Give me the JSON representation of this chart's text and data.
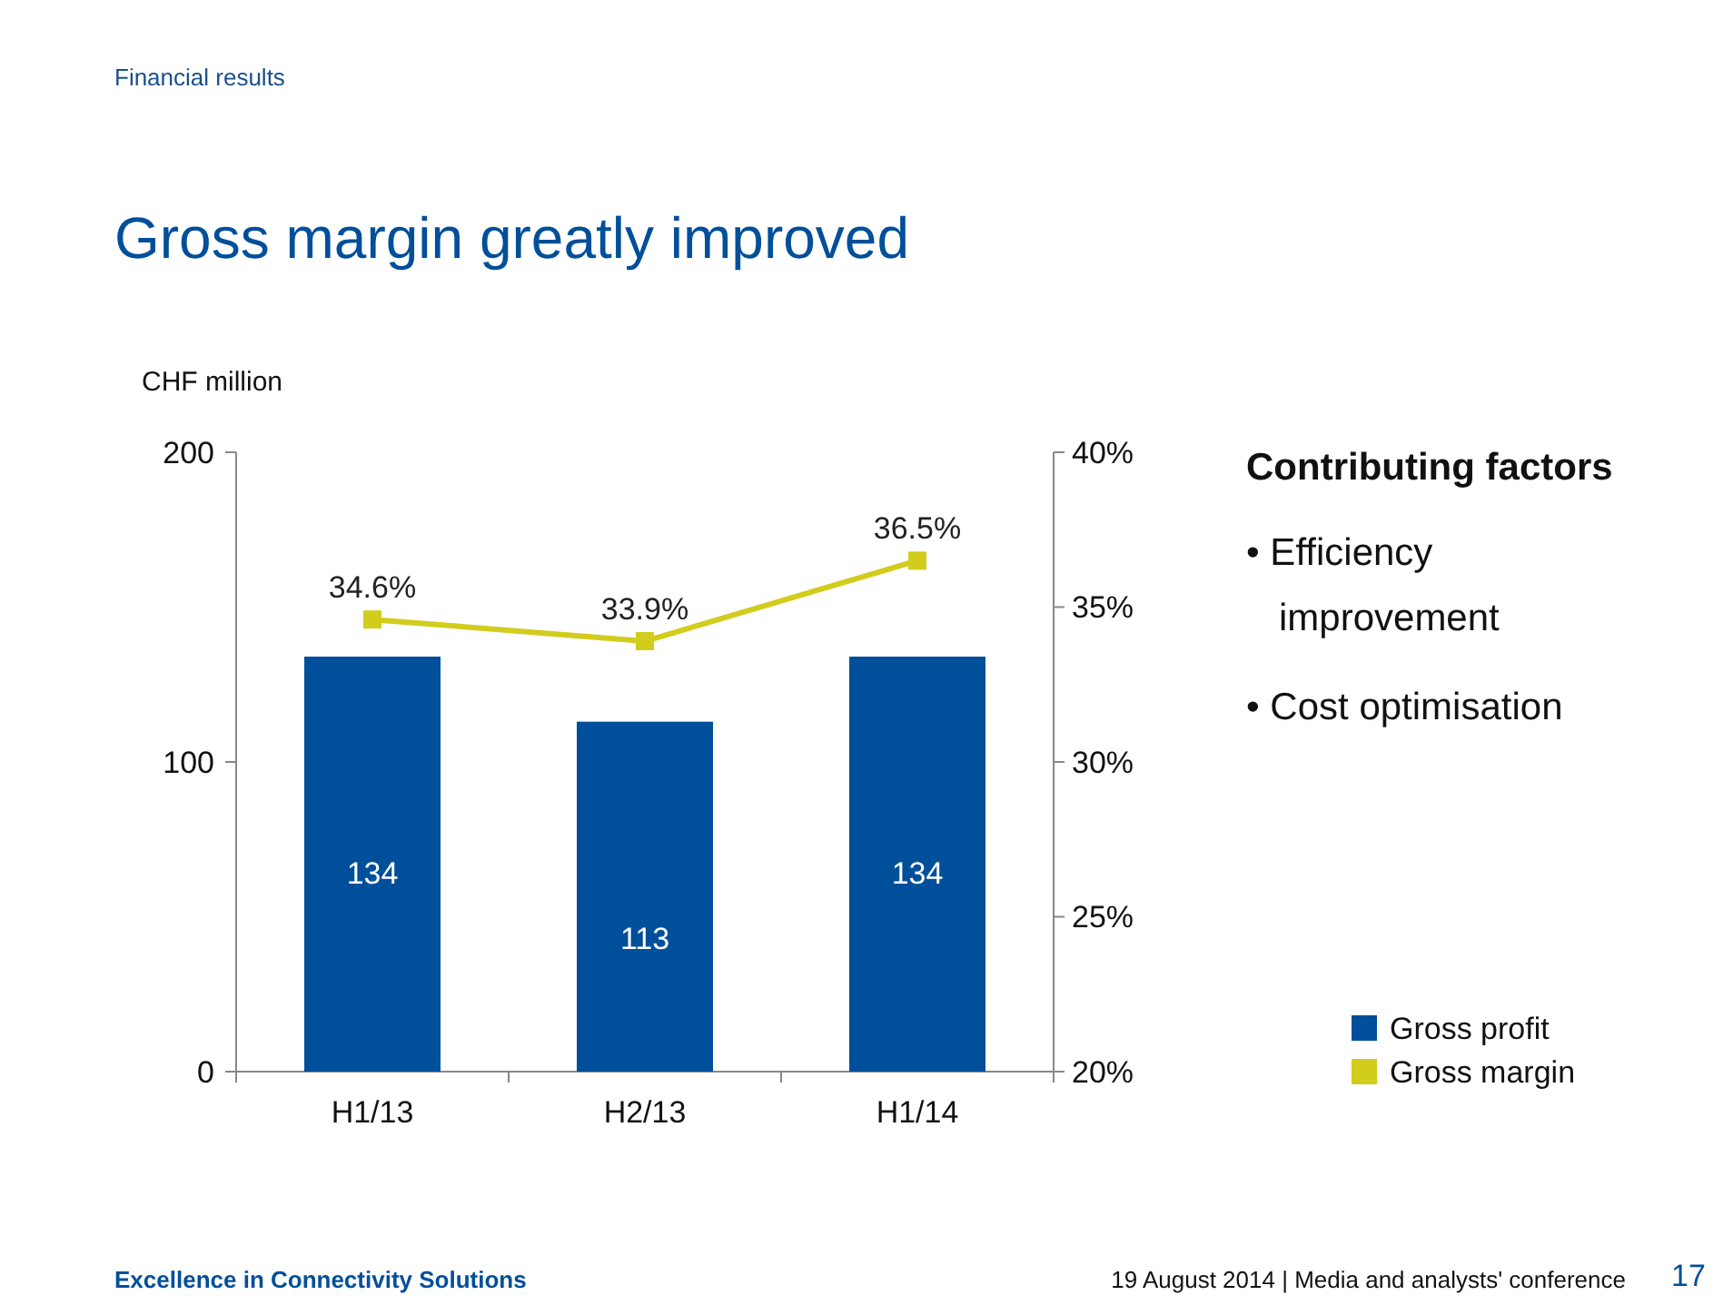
{
  "chart_data": {
    "type": "bar",
    "title": "Gross margin greatly improved",
    "ylabel": "CHF million",
    "categories": [
      "H1/13",
      "H2/13",
      "H1/14"
    ],
    "series": [
      {
        "name": "Gross profit",
        "color": "#004f9a",
        "values": [
          134,
          113,
          134
        ],
        "value_labels": [
          "134",
          "113",
          "134"
        ]
      },
      {
        "name": "Gross margin",
        "type": "line",
        "axis": "y2",
        "color": "#d2cc1c",
        "values": [
          34.6,
          33.9,
          36.5
        ],
        "value_labels": [
          "34.6%",
          "33.9%",
          "36.5%"
        ]
      }
    ],
    "ylim": [
      0,
      200
    ],
    "yticks": [
      0,
      100,
      200
    ],
    "y2lim": [
      20,
      40
    ],
    "y2ticks": [
      {
        "value": 20,
        "label": "20%"
      },
      {
        "value": 25,
        "label": "25%"
      },
      {
        "value": 30,
        "label": "30%"
      },
      {
        "value": 35,
        "label": "35%"
      },
      {
        "value": 40,
        "label": "40%"
      }
    ],
    "marker": "square",
    "legend": "bottom right",
    "annotations": [
      "Financial results",
      "Contributing factors",
      "• Efficiency improvement",
      "• Cost optimisation",
      "Excellence in Connectivity Solutions",
      "19 August 2014 | Media and analysts' conference",
      "17"
    ]
  }
}
